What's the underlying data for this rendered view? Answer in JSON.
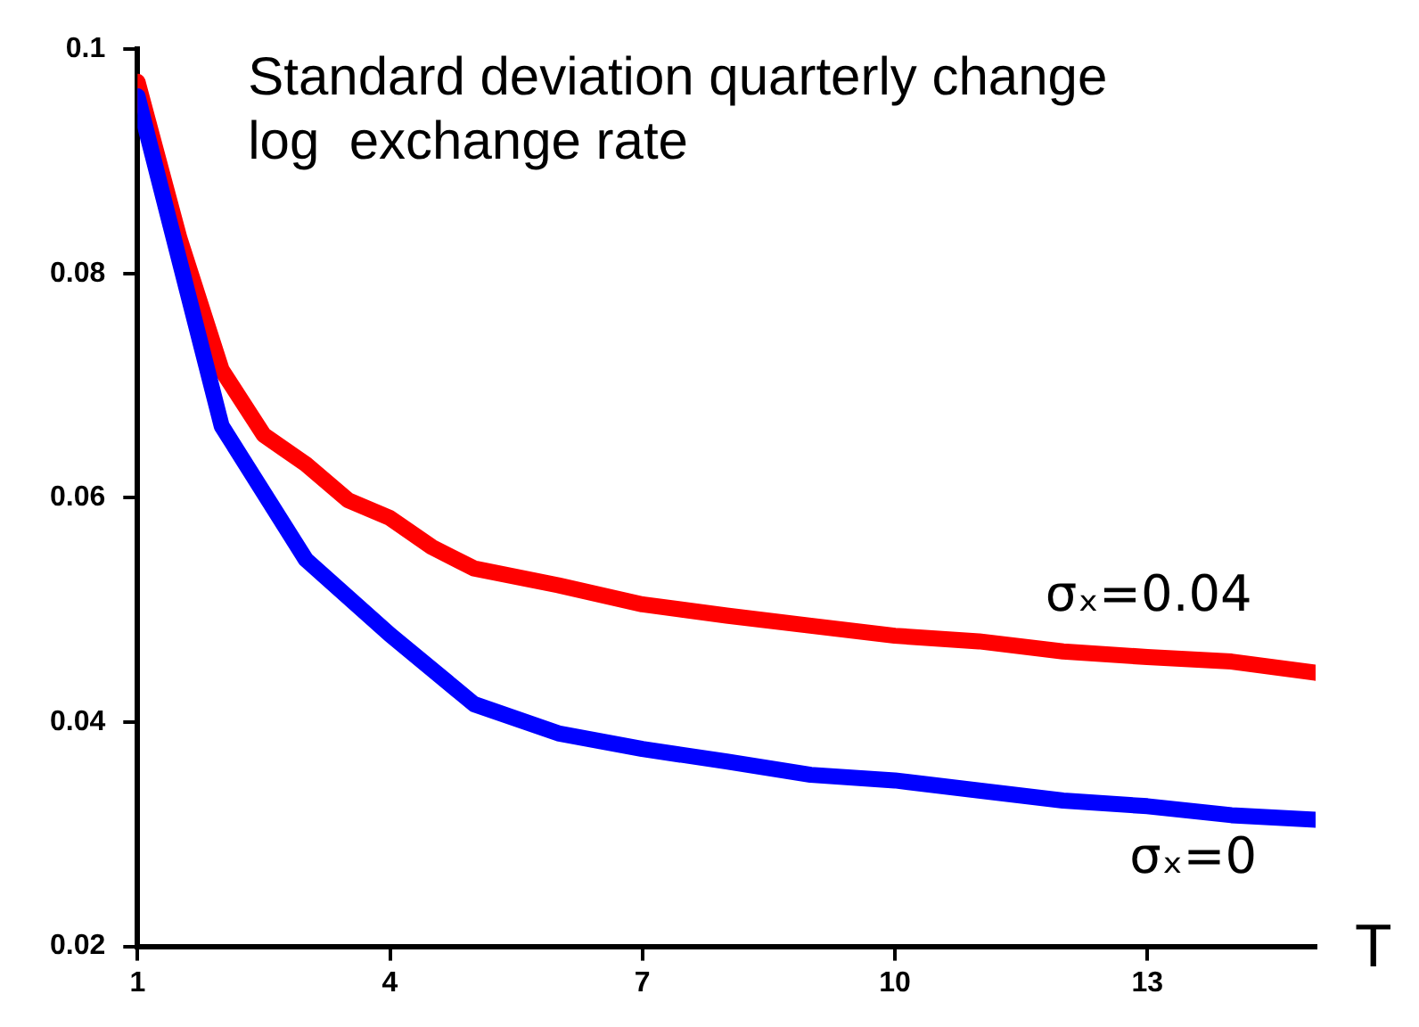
{
  "chart_data": {
    "type": "line",
    "title": "Standard deviation quarterly change\nlog  exchange rate",
    "xlabel": "T",
    "xlim": [
      1,
      15
    ],
    "xticks": [
      1,
      4,
      7,
      10,
      13
    ],
    "ylim": [
      0.02,
      0.1
    ],
    "yticks": [
      0.02,
      0.04,
      0.06,
      0.08,
      0.1
    ],
    "grid": false,
    "legend": false,
    "marker": "none",
    "line_style": "solid",
    "series": [
      {
        "name": "σₓ=0.04",
        "color": "#ff0000",
        "x": [
          1,
          1.5,
          2,
          2.5,
          3,
          3.5,
          4,
          4.5,
          5,
          6,
          7,
          8,
          9,
          10,
          11,
          12,
          13,
          14,
          15
        ],
        "values": [
          0.0971,
          0.0831,
          0.0714,
          0.0656,
          0.063,
          0.0598,
          0.0582,
          0.0556,
          0.0537,
          0.0522,
          0.0505,
          0.0495,
          0.0486,
          0.0477,
          0.0472,
          0.0463,
          0.0458,
          0.0454,
          0.0444
        ]
      },
      {
        "name": "σₓ=0",
        "color": "#0000ff",
        "x": [
          1,
          2,
          3,
          4,
          5,
          6,
          7,
          8,
          9,
          10,
          11,
          12,
          13,
          14,
          15
        ],
        "values": [
          0.0958,
          0.0664,
          0.0545,
          0.0478,
          0.0416,
          0.039,
          0.0376,
          0.0365,
          0.0353,
          0.0348,
          0.0339,
          0.033,
          0.0325,
          0.0317,
          0.0313
        ]
      }
    ]
  }
}
